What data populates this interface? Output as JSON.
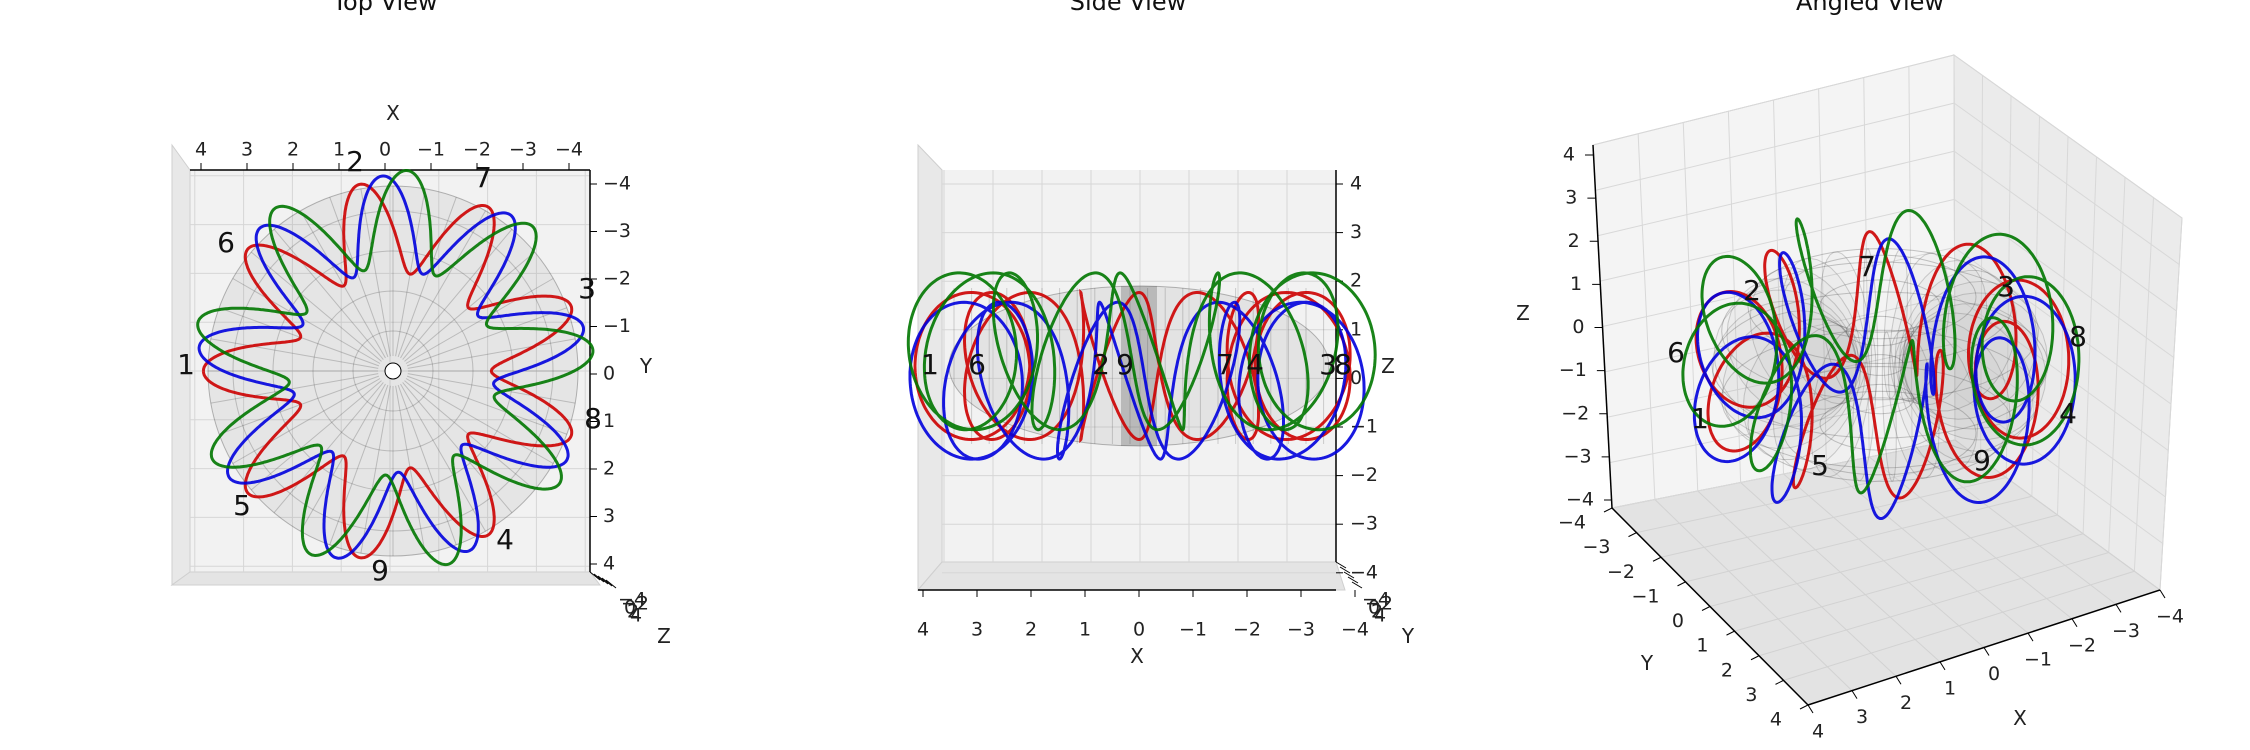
{
  "chart_data": [
    {
      "type": "line",
      "title": "Top View",
      "axes": {
        "x_label": "X",
        "y_label": "Y",
        "z_label": "Z"
      },
      "x_range": [
        -4,
        4
      ],
      "y_range": [
        -4,
        4
      ],
      "z_range": [
        -4,
        4
      ],
      "ticks": [
        4,
        3,
        2,
        1,
        0,
        "−1",
        "−2",
        "−3",
        "−4"
      ],
      "ticks_desc": [
        "−4",
        "−3",
        "−2",
        "−1",
        "0",
        "1",
        "2",
        "3",
        "4"
      ],
      "series_colors": [
        "#cc0000",
        "#0000dd",
        "#007700"
      ],
      "surface": {
        "type": "torus",
        "major_radius": 2,
        "minor_radius": 1.5,
        "color": "#555555"
      },
      "point_labels": [
        "1",
        "2",
        "3",
        "4",
        "5",
        "6",
        "7",
        "8",
        "9"
      ],
      "grid": true
    },
    {
      "type": "line",
      "title": "Side View",
      "axes": {
        "x_label": "X",
        "y_label": "Y",
        "z_label": "Z"
      },
      "x_range": [
        -4,
        4
      ],
      "y_range": [
        -4,
        4
      ],
      "z_range": [
        -4,
        4
      ],
      "x_ticks": [
        "4",
        "3",
        "2",
        "1",
        "0",
        "−1",
        "−2",
        "−3",
        "−4"
      ],
      "z_ticks": [
        "4",
        "3",
        "2",
        "1",
        "0",
        "−1",
        "−2",
        "−3",
        "−4"
      ],
      "series_colors": [
        "#cc0000",
        "#0000dd",
        "#007700"
      ],
      "point_labels": [
        "1",
        "6",
        "2",
        "9",
        "7",
        "4",
        "3",
        "8"
      ],
      "grid": true
    },
    {
      "type": "line",
      "title": "Angled View",
      "axes": {
        "x_label": "X",
        "y_label": "Y",
        "z_label": "Z"
      },
      "x_range": [
        -4,
        4
      ],
      "y_range": [
        -4,
        4
      ],
      "z_range": [
        -4,
        4
      ],
      "z_ticks": [
        "4",
        "3",
        "2",
        "1",
        "0",
        "−1",
        "−2",
        "−3",
        "−4"
      ],
      "y_ticks": [
        "−4",
        "−3",
        "−2",
        "−1",
        "0",
        "1",
        "2",
        "3",
        "4"
      ],
      "x_ticks": [
        "4",
        "3",
        "2",
        "1",
        "0",
        "−1",
        "−2",
        "−3",
        "−4"
      ],
      "series_colors": [
        "#cc0000",
        "#0000dd",
        "#007700"
      ],
      "point_labels": [
        "7",
        "2",
        "3",
        "6",
        "8",
        "1",
        "4",
        "5",
        "9"
      ],
      "grid": true
    }
  ]
}
